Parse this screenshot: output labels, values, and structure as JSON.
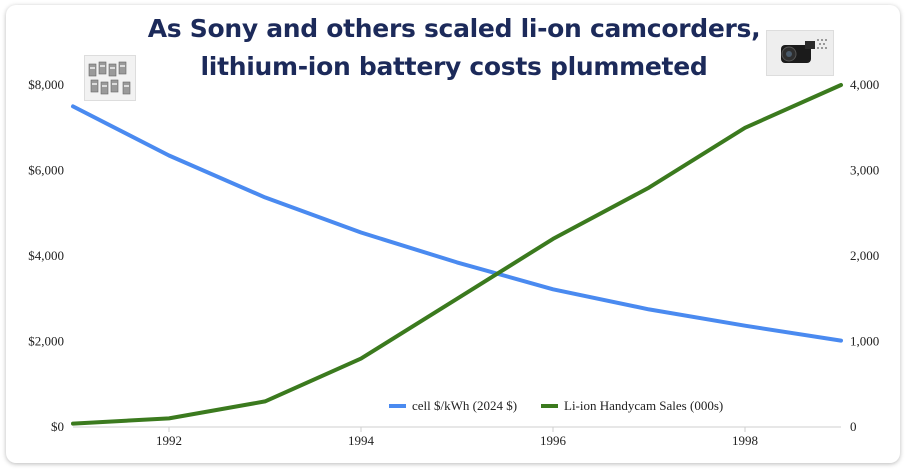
{
  "chart_data": {
    "type": "line",
    "title_lines": [
      "As Sony and others scaled li-on camcorders,",
      "lithium-ion battery costs plummeted"
    ],
    "x": [
      1991,
      1992,
      1993,
      1994,
      1995,
      1996,
      1997,
      1998,
      1999
    ],
    "x_ticks": [
      1992,
      1994,
      1996,
      1998
    ],
    "xlim": [
      1991,
      1999
    ],
    "y_left": {
      "lim": [
        0,
        8000
      ],
      "ticks": [
        0,
        2000,
        4000,
        6000,
        8000
      ],
      "tick_labels": [
        "$0",
        "$2,000",
        "$4,000",
        "$6,000",
        "$8,000"
      ]
    },
    "y_right": {
      "lim": [
        0,
        4000
      ],
      "ticks": [
        0,
        1000,
        2000,
        3000,
        4000
      ],
      "tick_labels": [
        "0",
        "1,000",
        "2,000",
        "3,000",
        "4,000"
      ]
    },
    "series": [
      {
        "name": "cell $/kWh (2024 $)",
        "axis": "left",
        "color": "#4a8af0",
        "values": [
          7500,
          6350,
          5370,
          4550,
          3850,
          3220,
          2750,
          2370,
          2020
        ]
      },
      {
        "name": "Li-ion Handycam Sales (000s)",
        "axis": "right",
        "color": "#3b7a1e",
        "values": [
          40,
          100,
          300,
          800,
          1500,
          2200,
          2800,
          3500,
          4000
        ]
      }
    ],
    "legend_position": "bottom-center",
    "grid": false
  },
  "images": {
    "left": "battery-cells-photo",
    "right": "handycam-camcorder-photo"
  }
}
